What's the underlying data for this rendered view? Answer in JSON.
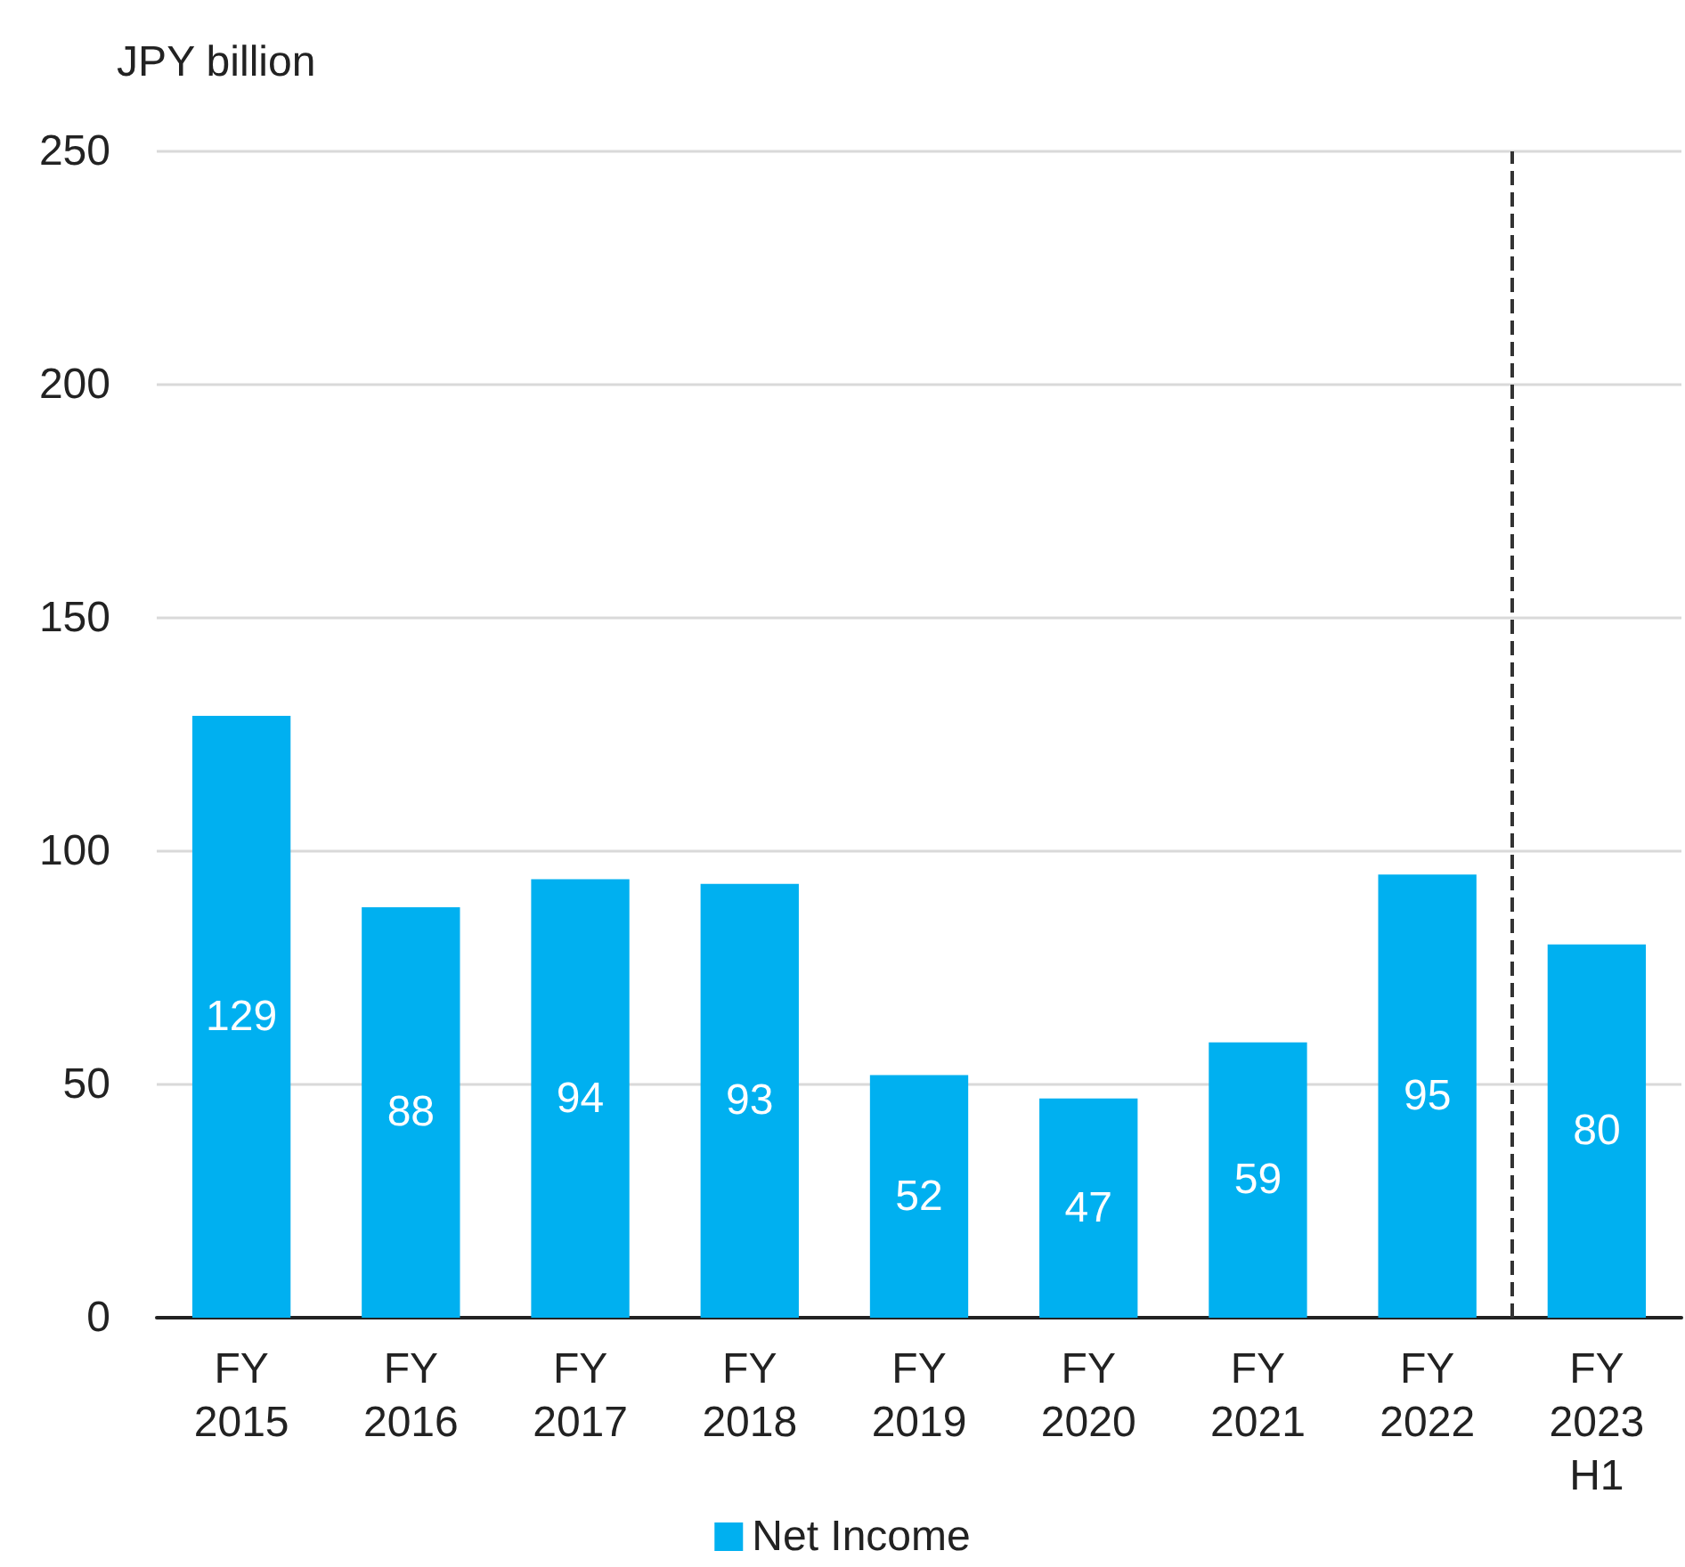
{
  "chart_data": {
    "type": "bar",
    "ylabel": "JPY billion",
    "categories": [
      "FY 2015",
      "FY 2016",
      "FY 2017",
      "FY 2018",
      "FY 2019",
      "FY 2020",
      "FY 2021",
      "FY 2022",
      "FY 2023 H1"
    ],
    "series": [
      {
        "name": "Net Income",
        "color": "#00b0f0",
        "values": [
          129,
          88,
          94,
          93,
          52,
          47,
          59,
          95,
          80
        ]
      }
    ],
    "ylim": [
      0,
      250
    ],
    "yticks": [
      0,
      50,
      100,
      150,
      200,
      250
    ],
    "grid": "y",
    "legend": "bottom",
    "data_labels": true,
    "ref_lines": [
      {
        "axis": "x",
        "value": "FY 2023 H1",
        "color": "#333333",
        "line_style": "dashed"
      }
    ]
  }
}
